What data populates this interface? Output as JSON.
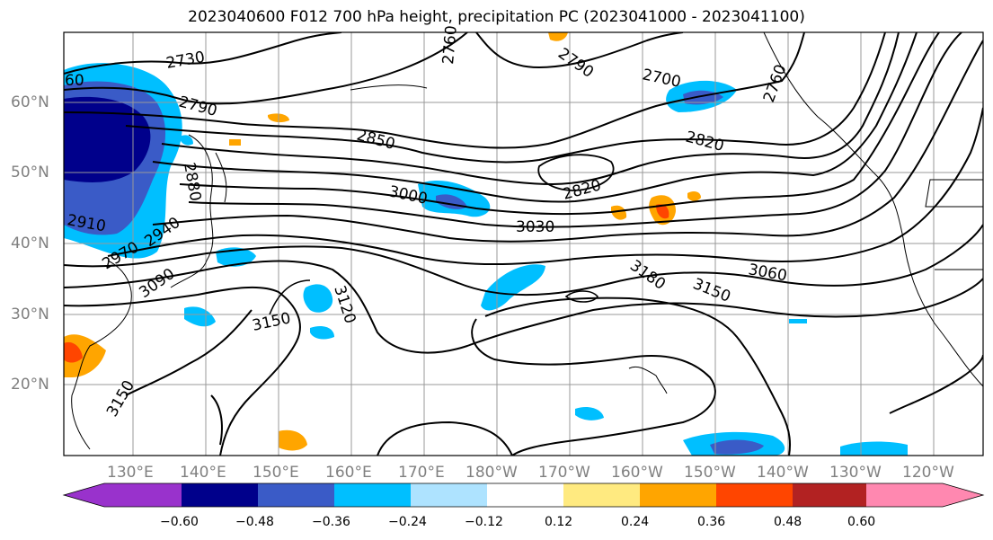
{
  "title": "2023040600 F012 700 hPa height, precipitation PC (2023041000 - 2023041100)",
  "lat_labels": [
    "60°N",
    "50°N",
    "40°N",
    "30°N",
    "20°N"
  ],
  "lon_labels": [
    "130°E",
    "140°E",
    "150°E",
    "160°E",
    "170°E",
    "180°W",
    "170°W",
    "160°W",
    "150°W",
    "140°W",
    "130°W",
    "120°W"
  ],
  "contour_labels": [
    "2730",
    "2790",
    "2850",
    "2880",
    "2910",
    "2940",
    "2970",
    "3090",
    "3000",
    "3030",
    "2820",
    "2820",
    "2700",
    "2760",
    "3060",
    "3180",
    "3150",
    "3120",
    "3150",
    "3150",
    "2790",
    "2760",
    "60"
  ],
  "colorbar": {
    "labels": [
      "−0.60",
      "−0.48",
      "−0.36",
      "−0.24",
      "−0.12",
      "0.12",
      "0.24",
      "0.36",
      "0.48",
      "0.60"
    ],
    "colors": [
      "#9932cc",
      "#00008b",
      "#3a5bc7",
      "#00bfff",
      "#aee3ff",
      "#ffffff",
      "#ffea80",
      "#ffa500",
      "#ff4500",
      "#b22222",
      "#ff88b0"
    ]
  }
}
